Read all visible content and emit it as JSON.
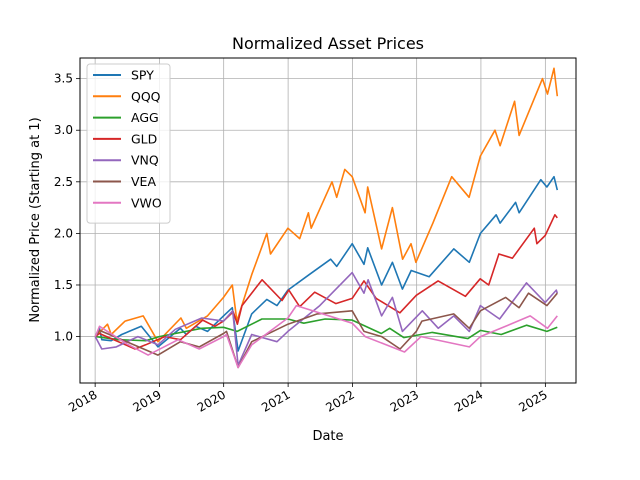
{
  "chart_data": {
    "type": "line",
    "title": "Normalized Asset Prices",
    "xlabel": "Date",
    "ylabel": "Normalized Price (Starting at 1)",
    "x_ticks": [
      "2018",
      "2019",
      "2020",
      "2021",
      "2022",
      "2023",
      "2024",
      "2025"
    ],
    "y_ticks": [
      "1.0",
      "1.5",
      "2.0",
      "2.5",
      "3.0",
      "3.5"
    ],
    "xlim": [
      "2017-10-07",
      "2025-06-24"
    ],
    "ylim": [
      0.55,
      3.7
    ],
    "grid": true,
    "legend_position": "top-left",
    "x_tick_rotation": 30,
    "series": [
      {
        "name": "SPY",
        "color": "#1f77b4",
        "points": [
          [
            "2018-01-02",
            1.0
          ],
          [
            "2018-01-26",
            1.08
          ],
          [
            "2018-02-08",
            0.97
          ],
          [
            "2018-04-02",
            0.96
          ],
          [
            "2018-06-01",
            1.02
          ],
          [
            "2018-09-20",
            1.1
          ],
          [
            "2018-12-24",
            0.9
          ],
          [
            "2019-04-30",
            1.08
          ],
          [
            "2019-06-03",
            1.02
          ],
          [
            "2019-07-26",
            1.1
          ],
          [
            "2019-10-01",
            1.05
          ],
          [
            "2019-12-31",
            1.2
          ],
          [
            "2020-02-19",
            1.28
          ],
          [
            "2020-03-23",
            0.86
          ],
          [
            "2020-06-08",
            1.22
          ],
          [
            "2020-09-02",
            1.36
          ],
          [
            "2020-10-30",
            1.3
          ],
          [
            "2020-12-31",
            1.45
          ],
          [
            "2021-04-30",
            1.6
          ],
          [
            "2021-08-31",
            1.75
          ],
          [
            "2021-10-04",
            1.68
          ],
          [
            "2021-12-31",
            1.9
          ],
          [
            "2022-03-08",
            1.7
          ],
          [
            "2022-03-29",
            1.86
          ],
          [
            "2022-06-16",
            1.5
          ],
          [
            "2022-08-16",
            1.72
          ],
          [
            "2022-10-12",
            1.46
          ],
          [
            "2022-12-01",
            1.64
          ],
          [
            "2023-03-13",
            1.58
          ],
          [
            "2023-07-31",
            1.85
          ],
          [
            "2023-10-27",
            1.72
          ],
          [
            "2023-12-29",
            2.0
          ],
          [
            "2024-03-28",
            2.18
          ],
          [
            "2024-04-19",
            2.1
          ],
          [
            "2024-07-16",
            2.3
          ],
          [
            "2024-08-05",
            2.2
          ],
          [
            "2024-12-06",
            2.52
          ],
          [
            "2025-01-10",
            2.45
          ],
          [
            "2025-02-19",
            2.55
          ],
          [
            "2025-03-10",
            2.42
          ]
        ]
      },
      {
        "name": "QQQ",
        "color": "#ff7f0e",
        "points": [
          [
            "2018-01-02",
            1.0
          ],
          [
            "2018-03-12",
            1.12
          ],
          [
            "2018-04-02",
            1.02
          ],
          [
            "2018-06-20",
            1.15
          ],
          [
            "2018-10-01",
            1.2
          ],
          [
            "2018-12-24",
            0.95
          ],
          [
            "2019-05-03",
            1.18
          ],
          [
            "2019-06-03",
            1.08
          ],
          [
            "2019-10-01",
            1.2
          ],
          [
            "2019-12-31",
            1.38
          ],
          [
            "2020-02-19",
            1.5
          ],
          [
            "2020-03-16",
            1.15
          ],
          [
            "2020-06-08",
            1.6
          ],
          [
            "2020-09-02",
            2.0
          ],
          [
            "2020-09-23",
            1.8
          ],
          [
            "2020-12-31",
            2.05
          ],
          [
            "2021-03-08",
            1.95
          ],
          [
            "2021-04-26",
            2.2
          ],
          [
            "2021-05-12",
            2.05
          ],
          [
            "2021-09-07",
            2.5
          ],
          [
            "2021-10-04",
            2.35
          ],
          [
            "2021-11-19",
            2.62
          ],
          [
            "2021-12-31",
            2.55
          ],
          [
            "2022-03-14",
            2.2
          ],
          [
            "2022-03-29",
            2.45
          ],
          [
            "2022-06-16",
            1.85
          ],
          [
            "2022-08-16",
            2.25
          ],
          [
            "2022-10-13",
            1.75
          ],
          [
            "2022-11-30",
            1.9
          ],
          [
            "2022-12-28",
            1.72
          ],
          [
            "2023-04-03",
            2.1
          ],
          [
            "2023-07-19",
            2.55
          ],
          [
            "2023-10-26",
            2.35
          ],
          [
            "2023-12-29",
            2.75
          ],
          [
            "2024-03-21",
            3.0
          ],
          [
            "2024-04-19",
            2.85
          ],
          [
            "2024-07-10",
            3.28
          ],
          [
            "2024-08-05",
            2.95
          ],
          [
            "2024-12-16",
            3.5
          ],
          [
            "2025-01-13",
            3.35
          ],
          [
            "2025-02-19",
            3.6
          ],
          [
            "2025-03-10",
            3.33
          ]
        ]
      },
      {
        "name": "AGG",
        "color": "#2ca02c",
        "points": [
          [
            "2018-01-02",
            1.0
          ],
          [
            "2018-05-15",
            0.97
          ],
          [
            "2018-10-15",
            0.96
          ],
          [
            "2018-12-31",
            1.0
          ],
          [
            "2019-08-30",
            1.08
          ],
          [
            "2019-12-31",
            1.09
          ],
          [
            "2020-03-18",
            1.05
          ],
          [
            "2020-08-05",
            1.17
          ],
          [
            "2020-12-31",
            1.17
          ],
          [
            "2021-03-31",
            1.13
          ],
          [
            "2021-07-30",
            1.17
          ],
          [
            "2021-12-31",
            1.16
          ],
          [
            "2022-06-14",
            1.03
          ],
          [
            "2022-08-01",
            1.08
          ],
          [
            "2022-10-20",
            0.99
          ],
          [
            "2023-03-31",
            1.04
          ],
          [
            "2023-10-19",
            0.98
          ],
          [
            "2023-12-29",
            1.06
          ],
          [
            "2024-04-25",
            1.02
          ],
          [
            "2024-09-16",
            1.11
          ],
          [
            "2025-01-10",
            1.05
          ],
          [
            "2025-03-10",
            1.09
          ]
        ]
      },
      {
        "name": "GLD",
        "color": "#d62728",
        "points": [
          [
            "2018-01-02",
            1.0
          ],
          [
            "2018-01-25",
            1.03
          ],
          [
            "2018-08-16",
            0.88
          ],
          [
            "2018-10-15",
            0.92
          ],
          [
            "2019-01-31",
            1.0
          ],
          [
            "2019-05-01",
            0.97
          ],
          [
            "2019-09-04",
            1.16
          ],
          [
            "2019-11-12",
            1.1
          ],
          [
            "2019-12-31",
            1.15
          ],
          [
            "2020-02-24",
            1.24
          ],
          [
            "2020-03-19",
            1.12
          ],
          [
            "2020-04-14",
            1.3
          ],
          [
            "2020-08-06",
            1.55
          ],
          [
            "2020-11-27",
            1.35
          ],
          [
            "2021-01-05",
            1.45
          ],
          [
            "2021-03-08",
            1.29
          ],
          [
            "2021-06-01",
            1.43
          ],
          [
            "2021-09-29",
            1.32
          ],
          [
            "2021-12-31",
            1.37
          ],
          [
            "2022-03-08",
            1.54
          ],
          [
            "2022-05-16",
            1.37
          ],
          [
            "2022-09-28",
            1.23
          ],
          [
            "2022-12-30",
            1.4
          ],
          [
            "2023-05-03",
            1.54
          ],
          [
            "2023-10-05",
            1.39
          ],
          [
            "2023-12-28",
            1.56
          ],
          [
            "2024-02-14",
            1.5
          ],
          [
            "2024-04-12",
            1.8
          ],
          [
            "2024-06-28",
            1.76
          ],
          [
            "2024-10-30",
            2.05
          ],
          [
            "2024-11-14",
            1.9
          ],
          [
            "2024-12-31",
            1.98
          ],
          [
            "2025-02-24",
            2.18
          ],
          [
            "2025-03-10",
            2.15
          ]
        ]
      },
      {
        "name": "VNQ",
        "color": "#9467bd",
        "points": [
          [
            "2018-01-02",
            1.0
          ],
          [
            "2018-02-08",
            0.88
          ],
          [
            "2018-05-01",
            0.9
          ],
          [
            "2018-09-01",
            1.0
          ],
          [
            "2018-12-24",
            0.92
          ],
          [
            "2019-04-01",
            1.07
          ],
          [
            "2019-08-30",
            1.18
          ],
          [
            "2019-12-31",
            1.15
          ],
          [
            "2020-02-21",
            1.25
          ],
          [
            "2020-03-23",
            0.72
          ],
          [
            "2020-06-08",
            1.02
          ],
          [
            "2020-10-30",
            0.95
          ],
          [
            "2020-12-31",
            1.05
          ],
          [
            "2021-06-30",
            1.3
          ],
          [
            "2021-12-31",
            1.62
          ],
          [
            "2022-03-08",
            1.42
          ],
          [
            "2022-03-31",
            1.55
          ],
          [
            "2022-06-16",
            1.2
          ],
          [
            "2022-08-16",
            1.38
          ],
          [
            "2022-10-12",
            1.05
          ],
          [
            "2023-02-02",
            1.25
          ],
          [
            "2023-05-04",
            1.08
          ],
          [
            "2023-07-31",
            1.2
          ],
          [
            "2023-10-27",
            1.05
          ],
          [
            "2023-12-29",
            1.3
          ],
          [
            "2024-04-16",
            1.17
          ],
          [
            "2024-09-16",
            1.52
          ],
          [
            "2024-12-31",
            1.33
          ],
          [
            "2025-03-04",
            1.45
          ],
          [
            "2025-03-10",
            1.42
          ]
        ]
      },
      {
        "name": "VEA",
        "color": "#8c564b",
        "points": [
          [
            "2018-01-02",
            1.0
          ],
          [
            "2018-01-26",
            1.06
          ],
          [
            "2018-06-29",
            0.95
          ],
          [
            "2018-12-24",
            0.82
          ],
          [
            "2019-04-30",
            0.95
          ],
          [
            "2019-08-15",
            0.9
          ],
          [
            "2019-12-31",
            1.03
          ],
          [
            "2020-01-17",
            1.05
          ],
          [
            "2020-03-23",
            0.7
          ],
          [
            "2020-06-08",
            0.95
          ],
          [
            "2020-12-31",
            1.12
          ],
          [
            "2021-06-15",
            1.22
          ],
          [
            "2021-12-31",
            1.25
          ],
          [
            "2022-03-08",
            1.05
          ],
          [
            "2022-06-16",
            1.0
          ],
          [
            "2022-09-29",
            0.88
          ],
          [
            "2022-12-30",
            1.05
          ],
          [
            "2023-01-31",
            1.15
          ],
          [
            "2023-07-31",
            1.22
          ],
          [
            "2023-10-27",
            1.08
          ],
          [
            "2023-12-29",
            1.25
          ],
          [
            "2024-05-20",
            1.38
          ],
          [
            "2024-08-05",
            1.28
          ],
          [
            "2024-09-27",
            1.42
          ],
          [
            "2025-01-10",
            1.3
          ],
          [
            "2025-03-10",
            1.42
          ]
        ]
      },
      {
        "name": "VWO",
        "color": "#e377c2",
        "points": [
          [
            "2018-01-02",
            1.0
          ],
          [
            "2018-01-26",
            1.1
          ],
          [
            "2018-06-29",
            0.93
          ],
          [
            "2018-10-29",
            0.82
          ],
          [
            "2019-04-17",
            0.97
          ],
          [
            "2019-08-15",
            0.88
          ],
          [
            "2019-12-31",
            1.0
          ],
          [
            "2020-01-17",
            1.02
          ],
          [
            "2020-03-23",
            0.7
          ],
          [
            "2020-06-08",
            0.92
          ],
          [
            "2020-12-31",
            1.18
          ],
          [
            "2021-02-17",
            1.3
          ],
          [
            "2021-12-31",
            1.13
          ],
          [
            "2022-03-15",
            1.0
          ],
          [
            "2022-10-24",
            0.85
          ],
          [
            "2023-01-26",
            1.0
          ],
          [
            "2023-10-27",
            0.9
          ],
          [
            "2023-12-29",
            1.0
          ],
          [
            "2024-05-20",
            1.1
          ],
          [
            "2024-10-07",
            1.2
          ],
          [
            "2025-01-13",
            1.08
          ],
          [
            "2025-03-10",
            1.2
          ]
        ]
      }
    ]
  }
}
